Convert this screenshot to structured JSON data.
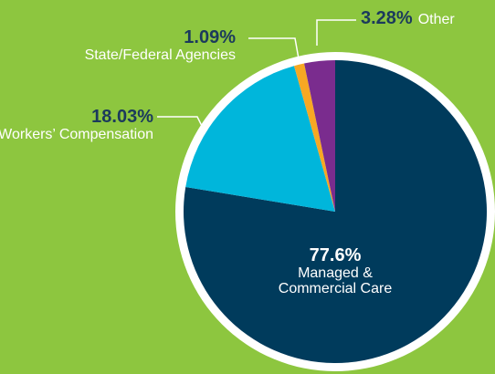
{
  "chart_data": {
    "type": "pie",
    "categories": [
      "Managed & Commercial Care",
      "Workers’ Compensation",
      "State/Federal Agencies",
      "Other"
    ],
    "values": [
      77.6,
      18.03,
      1.09,
      3.28
    ],
    "value_labels": [
      "77.6%",
      "18.03%",
      "1.09%",
      "3.28%"
    ],
    "colors": [
      "#003b5c",
      "#00b6db",
      "#f7a823",
      "#7a2c8e"
    ]
  }
}
